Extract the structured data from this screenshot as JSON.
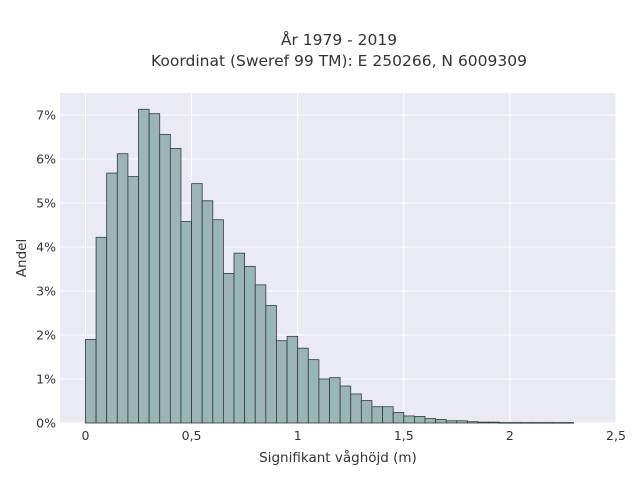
{
  "chart_data": {
    "type": "bar",
    "title": "År 1979 - 2019",
    "subtitle": "Koordinat (Sweref 99 TM): E 250266, N 6009309",
    "xlabel": "Signifikant våghöjd (m)",
    "ylabel": "Andel",
    "xlim": [
      -0.12,
      2.5
    ],
    "ylim": [
      0,
      7.5
    ],
    "x_ticks": [
      {
        "value": 0,
        "label": "0"
      },
      {
        "value": 0.5,
        "label": "0,5"
      },
      {
        "value": 1,
        "label": "1"
      },
      {
        "value": 1.5,
        "label": "1,5"
      },
      {
        "value": 2,
        "label": "2"
      },
      {
        "value": 2.5,
        "label": "2,5"
      }
    ],
    "y_ticks": [
      {
        "value": 0,
        "label": "0%"
      },
      {
        "value": 1,
        "label": "1%"
      },
      {
        "value": 2,
        "label": "2%"
      },
      {
        "value": 3,
        "label": "3%"
      },
      {
        "value": 4,
        "label": "4%"
      },
      {
        "value": 5,
        "label": "5%"
      },
      {
        "value": 6,
        "label": "6%"
      },
      {
        "value": 7,
        "label": "7%"
      }
    ],
    "bin_width": 0.05,
    "bin_starts": [
      0,
      0.05,
      0.1,
      0.15,
      0.2,
      0.25,
      0.3,
      0.35,
      0.4,
      0.45,
      0.5,
      0.55,
      0.6,
      0.65,
      0.7,
      0.75,
      0.8,
      0.85,
      0.9,
      0.95,
      1.0,
      1.05,
      1.1,
      1.15,
      1.2,
      1.25,
      1.3,
      1.35,
      1.4,
      1.45,
      1.5,
      1.55,
      1.6,
      1.65,
      1.7,
      1.75,
      1.8,
      1.85,
      1.9,
      1.95,
      2.0,
      2.05,
      2.1,
      2.15,
      2.2,
      2.25
    ],
    "values": [
      1.9,
      4.22,
      5.68,
      6.12,
      5.6,
      7.13,
      7.03,
      6.56,
      6.24,
      4.58,
      5.44,
      5.05,
      4.62,
      3.4,
      3.86,
      3.56,
      3.14,
      2.67,
      1.87,
      1.97,
      1.7,
      1.44,
      1.0,
      1.03,
      0.84,
      0.66,
      0.51,
      0.37,
      0.37,
      0.24,
      0.16,
      0.15,
      0.1,
      0.08,
      0.05,
      0.05,
      0.03,
      0.02,
      0.02,
      0.01,
      0.01,
      0.01,
      0.01,
      0.01,
      0.01,
      0.01
    ],
    "grid": true,
    "legend": "none",
    "colors": {
      "bar_fill": "#9bb5b4",
      "bar_stroke": "#2f3b3b",
      "plot_bg": "#eaeaf2",
      "grid": "#ffffff"
    }
  }
}
